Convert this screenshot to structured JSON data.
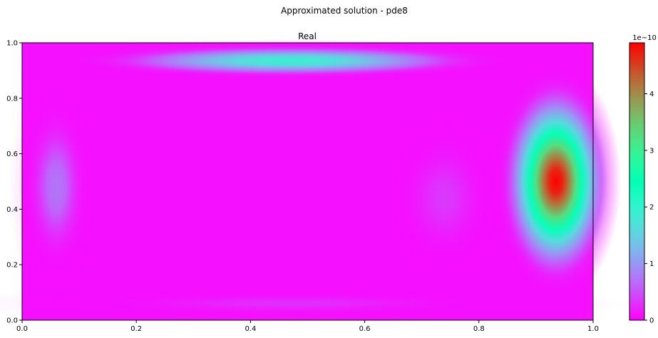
{
  "figure": {
    "suptitle": "Approximated solution - pde8"
  },
  "chart_data": {
    "type": "heatmap",
    "title": "Real",
    "xlabel": "",
    "ylabel": "",
    "xlim": [
      0,
      1
    ],
    "ylim": [
      0,
      1
    ],
    "xticks": [
      0.0,
      0.2,
      0.4,
      0.6,
      0.8,
      1.0
    ],
    "xtick_labels": [
      "0.0",
      "0.2",
      "0.4",
      "0.6",
      "0.8",
      "1.0"
    ],
    "yticks": [
      0.0,
      0.2,
      0.4,
      0.6,
      0.8,
      1.0
    ],
    "ytick_labels": [
      "0.0",
      "0.2",
      "0.4",
      "0.6",
      "0.8",
      "1.0"
    ],
    "grid": false,
    "colormap": "rainbow",
    "colorbar": {
      "min": 0,
      "max": 4.9,
      "ticks": [
        0,
        1,
        2,
        3,
        4
      ],
      "tick_labels": [
        "0",
        "1",
        "2",
        "3",
        "4"
      ],
      "scale_label": "1e−10"
    },
    "features": [
      {
        "x": 0.935,
        "y": 0.5,
        "value": 4.9,
        "sx": 0.038,
        "sy": 0.145
      },
      {
        "x": 0.47,
        "y": 0.935,
        "value": 1.9,
        "sx": 0.16,
        "sy": 0.026
      },
      {
        "x": 0.06,
        "y": 0.48,
        "value": 0.75,
        "sx": 0.028,
        "sy": 0.15
      },
      {
        "x": 0.74,
        "y": 0.44,
        "value": 0.45,
        "sx": 0.045,
        "sy": 0.13
      },
      {
        "x": 0.47,
        "y": 0.06,
        "value": 0.4,
        "sx": 0.2,
        "sy": 0.022
      }
    ]
  }
}
